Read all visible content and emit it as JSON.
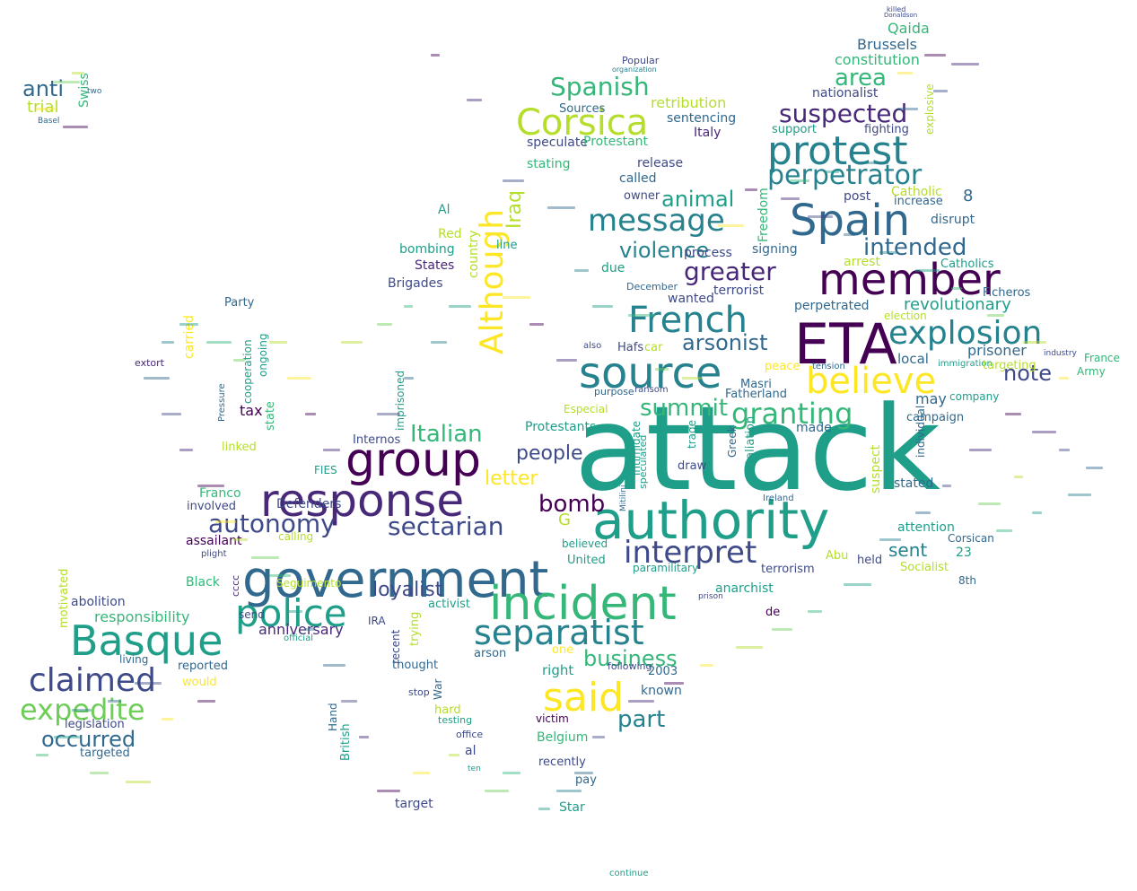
{
  "palette": [
    "#440154",
    "#482878",
    "#3e4a89",
    "#31688e",
    "#26828e",
    "#1f9e89",
    "#35b779",
    "#6ece58",
    "#b5de2b",
    "#fde725"
  ],
  "words": [
    {
      "text": "attack",
      "color": "#1f9e89"
    },
    {
      "text": "authority",
      "color": "#1f9e89"
    },
    {
      "text": "government",
      "color": "#31688e"
    },
    {
      "text": "incident",
      "color": "#35b779"
    },
    {
      "text": "group",
      "color": "#440154"
    },
    {
      "text": "response",
      "color": "#482878"
    },
    {
      "text": "ETA",
      "color": "#440154"
    },
    {
      "text": "Spain",
      "color": "#31688e"
    },
    {
      "text": "member",
      "color": "#440154"
    },
    {
      "text": "protest",
      "color": "#26828e"
    },
    {
      "text": "source",
      "color": "#26828e"
    },
    {
      "text": "police",
      "color": "#1f9e89"
    },
    {
      "text": "Basque",
      "color": "#1f9e89"
    },
    {
      "text": "said",
      "color": "#fde725"
    },
    {
      "text": "believe",
      "color": "#fde725"
    },
    {
      "text": "separatist",
      "color": "#26828e"
    },
    {
      "text": "French",
      "color": "#26828e"
    },
    {
      "text": "message",
      "color": "#26828e"
    },
    {
      "text": "explosion",
      "color": "#26828e"
    },
    {
      "text": "Corsica",
      "color": "#b5de2b"
    },
    {
      "text": "claimed",
      "color": "#3e4a89"
    },
    {
      "text": "expedite",
      "color": "#6ece58"
    },
    {
      "text": "interpret",
      "color": "#3e4a89"
    },
    {
      "text": "Although",
      "color": "#fde725"
    },
    {
      "text": "granting",
      "color": "#35b779"
    },
    {
      "text": "perpetrator",
      "color": "#26828e"
    },
    {
      "text": "autonomy",
      "color": "#3e4a89"
    },
    {
      "text": "suspected",
      "color": "#482878"
    },
    {
      "text": "greater",
      "color": "#482878"
    },
    {
      "text": "Spanish",
      "color": "#35b779"
    },
    {
      "text": "intended",
      "color": "#31688e"
    },
    {
      "text": "summit",
      "color": "#35b779"
    },
    {
      "text": "Italian",
      "color": "#35b779"
    },
    {
      "text": "bomb",
      "color": "#440154"
    },
    {
      "text": "sectarian",
      "color": "#3e4a89"
    },
    {
      "text": "violence",
      "color": "#26828e"
    },
    {
      "text": "arsonist",
      "color": "#31688e"
    },
    {
      "text": "part",
      "color": "#26828e"
    },
    {
      "text": "business",
      "color": "#35b779"
    },
    {
      "text": "occurred",
      "color": "#31688e"
    },
    {
      "text": "loyalist",
      "color": "#3e4a89"
    },
    {
      "text": "note",
      "color": "#3e4a89"
    },
    {
      "text": "animal",
      "color": "#1f9e89"
    },
    {
      "text": "area",
      "color": "#35b779"
    },
    {
      "text": "letter",
      "color": "#fde725"
    },
    {
      "text": "people",
      "color": "#3e4a89"
    },
    {
      "text": "anti",
      "color": "#31688e"
    },
    {
      "text": "Iraq",
      "color": "#b5de2b"
    },
    {
      "text": "revolutionary",
      "color": "#1f9e89"
    },
    {
      "text": "prisoner",
      "color": "#31688e"
    },
    {
      "text": "anniversary",
      "color": "#482878"
    },
    {
      "text": "sent",
      "color": "#26828e"
    },
    {
      "text": "constitution",
      "color": "#35b779"
    },
    {
      "text": "Brussels",
      "color": "#31688e"
    },
    {
      "text": "nationalist",
      "color": "#3e4a89"
    },
    {
      "text": "retribution",
      "color": "#b5de2b"
    },
    {
      "text": "sentencing",
      "color": "#31688e"
    },
    {
      "text": "responsibility",
      "color": "#35b779"
    },
    {
      "text": "Qaida",
      "color": "#35b779"
    },
    {
      "text": "trial",
      "color": "#b5de2b"
    },
    {
      "text": "Swiss",
      "color": "#35b779"
    },
    {
      "text": "two",
      "color": "#31688e"
    },
    {
      "text": "Basel",
      "color": "#31688e"
    },
    {
      "text": "Popular",
      "color": "#3e4a89"
    },
    {
      "text": "organization",
      "color": "#26828e"
    },
    {
      "text": "Sources",
      "color": "#31688e"
    },
    {
      "text": "speculate",
      "color": "#3e4a89"
    },
    {
      "text": "Protestant",
      "color": "#35b779"
    },
    {
      "text": "stating",
      "color": "#35b779"
    },
    {
      "text": "release",
      "color": "#3e4a89"
    },
    {
      "text": "Italy",
      "color": "#482878"
    },
    {
      "text": "support",
      "color": "#1f9e89"
    },
    {
      "text": "fighting",
      "color": "#3e4a89"
    },
    {
      "text": "explosive",
      "color": "#b5de2b"
    },
    {
      "text": "called",
      "color": "#31688e"
    },
    {
      "text": "owner",
      "color": "#3e4a89"
    },
    {
      "text": "Catholic",
      "color": "#b5de2b"
    },
    {
      "text": "increase",
      "color": "#31688e"
    },
    {
      "text": "8",
      "color": "#31688e"
    },
    {
      "text": "post",
      "color": "#3e4a89"
    },
    {
      "text": "disrupt",
      "color": "#31688e"
    },
    {
      "text": "Freedom",
      "color": "#35b779"
    },
    {
      "text": "Al",
      "color": "#1f9e89"
    },
    {
      "text": "Red",
      "color": "#b5de2b"
    },
    {
      "text": "bombing",
      "color": "#1f9e89"
    },
    {
      "text": "line",
      "color": "#1f9e89"
    },
    {
      "text": "country",
      "color": "#b5de2b"
    },
    {
      "text": "States",
      "color": "#482878"
    },
    {
      "text": "Brigades",
      "color": "#3e4a89"
    },
    {
      "text": "due",
      "color": "#1f9e89"
    },
    {
      "text": "process",
      "color": "#3e4a89"
    },
    {
      "text": "signing",
      "color": "#31688e"
    },
    {
      "text": "arrest",
      "color": "#b5de2b"
    },
    {
      "text": "Catholics",
      "color": "#1f9e89"
    },
    {
      "text": "December",
      "color": "#31688e"
    },
    {
      "text": "terrorist",
      "color": "#3e4a89"
    },
    {
      "text": "wanted",
      "color": "#3e4a89"
    },
    {
      "text": "Ficheros",
      "color": "#31688e"
    },
    {
      "text": "perpetrated",
      "color": "#31688e"
    },
    {
      "text": "election",
      "color": "#b5de2b"
    },
    {
      "text": "Party",
      "color": "#31688e"
    },
    {
      "text": "cooperation",
      "color": "#1f9e89"
    },
    {
      "text": "ongoing",
      "color": "#1f9e89"
    },
    {
      "text": "carried",
      "color": "#fde725"
    },
    {
      "text": "tax",
      "color": "#440154"
    },
    {
      "text": "state",
      "color": "#35b779"
    },
    {
      "text": "Pressure",
      "color": "#31688e"
    },
    {
      "text": "linked",
      "color": "#b5de2b"
    },
    {
      "text": "Hafs",
      "color": "#3e4a89"
    },
    {
      "text": "car",
      "color": "#b5de2b"
    },
    {
      "text": "also",
      "color": "#3e4a89"
    },
    {
      "text": "peace",
      "color": "#fde725"
    },
    {
      "text": "Masri",
      "color": "#31688e"
    },
    {
      "text": "Fatherland",
      "color": "#31688e"
    },
    {
      "text": "tension",
      "color": "#31688e"
    },
    {
      "text": "local",
      "color": "#31688e"
    },
    {
      "text": "immigration",
      "color": "#1f9e89"
    },
    {
      "text": "targeting",
      "color": "#b5de2b"
    },
    {
      "text": "may",
      "color": "#31688e"
    },
    {
      "text": "company",
      "color": "#1f9e89"
    },
    {
      "text": "France",
      "color": "#35b779"
    },
    {
      "text": "Army",
      "color": "#35b779"
    },
    {
      "text": "industry",
      "color": "#3e4a89"
    },
    {
      "text": "campaign",
      "color": "#31688e"
    },
    {
      "text": "made",
      "color": "#31688e"
    },
    {
      "text": "individual",
      "color": "#31688e"
    },
    {
      "text": "stated",
      "color": "#31688e"
    },
    {
      "text": "suspect",
      "color": "#b5de2b"
    },
    {
      "text": "attention",
      "color": "#1f9e89"
    },
    {
      "text": "Corsican",
      "color": "#31688e"
    },
    {
      "text": "23",
      "color": "#1f9e89"
    },
    {
      "text": "Socialist",
      "color": "#b5de2b"
    },
    {
      "text": "held",
      "color": "#3e4a89"
    },
    {
      "text": "Abu",
      "color": "#b5de2b"
    },
    {
      "text": "8th",
      "color": "#31688e"
    },
    {
      "text": "terrorism",
      "color": "#3e4a89"
    },
    {
      "text": "paramilitary",
      "color": "#1f9e89"
    },
    {
      "text": "anarchist",
      "color": "#1f9e89"
    },
    {
      "text": "de",
      "color": "#440154"
    },
    {
      "text": "prison",
      "color": "#3e4a89"
    },
    {
      "text": "Ireland",
      "color": "#31688e"
    },
    {
      "text": "retaliation",
      "color": "#1f9e89"
    },
    {
      "text": "Greek",
      "color": "#31688e"
    },
    {
      "text": "trade",
      "color": "#1f9e89"
    },
    {
      "text": "draw",
      "color": "#3e4a89"
    },
    {
      "text": "intimidate",
      "color": "#1f9e89"
    },
    {
      "text": "speculated",
      "color": "#1f9e89"
    },
    {
      "text": "Mitilini",
      "color": "#31688e"
    },
    {
      "text": "Especial",
      "color": "#b5de2b"
    },
    {
      "text": "ransom",
      "color": "#3e4a89"
    },
    {
      "text": "purpose",
      "color": "#31688e"
    },
    {
      "text": "Protestants",
      "color": "#1f9e89"
    },
    {
      "text": "Internos",
      "color": "#3e4a89"
    },
    {
      "text": "imprisoned",
      "color": "#1f9e89"
    },
    {
      "text": "FIES",
      "color": "#1f9e89"
    },
    {
      "text": "Defenders",
      "color": "#3e4a89"
    },
    {
      "text": "Franco",
      "color": "#35b779"
    },
    {
      "text": "involved",
      "color": "#3e4a89"
    },
    {
      "text": "assailant",
      "color": "#440154"
    },
    {
      "text": "calling",
      "color": "#b5de2b"
    },
    {
      "text": "plight",
      "color": "#3e4a89"
    },
    {
      "text": "Black",
      "color": "#35b779"
    },
    {
      "text": "cccc",
      "color": "#482878"
    },
    {
      "text": "Seguimento",
      "color": "#b5de2b"
    },
    {
      "text": "send",
      "color": "#3e4a89"
    },
    {
      "text": "abolition",
      "color": "#3e4a89"
    },
    {
      "text": "motivated",
      "color": "#b5de2b"
    },
    {
      "text": "reported",
      "color": "#31688e"
    },
    {
      "text": "would",
      "color": "#fde725"
    },
    {
      "text": "living",
      "color": "#31688e"
    },
    {
      "text": "legislation",
      "color": "#3e4a89"
    },
    {
      "text": "targeted",
      "color": "#31688e"
    },
    {
      "text": "extort",
      "color": "#482878"
    },
    {
      "text": "recent",
      "color": "#3e4a89"
    },
    {
      "text": "thought",
      "color": "#31688e"
    },
    {
      "text": "trying",
      "color": "#b5de2b"
    },
    {
      "text": "activist",
      "color": "#1f9e89"
    },
    {
      "text": "IRA",
      "color": "#3e4a89"
    },
    {
      "text": "arson",
      "color": "#31688e"
    },
    {
      "text": "one",
      "color": "#fde725"
    },
    {
      "text": "right",
      "color": "#1f9e89"
    },
    {
      "text": "War",
      "color": "#31688e"
    },
    {
      "text": "stop",
      "color": "#3e4a89"
    },
    {
      "text": "hard",
      "color": "#b5de2b"
    },
    {
      "text": "testing",
      "color": "#1f9e89"
    },
    {
      "text": "office",
      "color": "#3e4a89"
    },
    {
      "text": "al",
      "color": "#3e4a89"
    },
    {
      "text": "ten",
      "color": "#1f9e89"
    },
    {
      "text": "Hand",
      "color": "#31688e"
    },
    {
      "text": "British",
      "color": "#1f9e89"
    },
    {
      "text": "target",
      "color": "#3e4a89"
    },
    {
      "text": "Star",
      "color": "#1f9e89"
    },
    {
      "text": "pay",
      "color": "#31688e"
    },
    {
      "text": "recently",
      "color": "#3e4a89"
    },
    {
      "text": "Belgium",
      "color": "#35b779"
    },
    {
      "text": "victim",
      "color": "#440154"
    },
    {
      "text": "known",
      "color": "#31688e"
    },
    {
      "text": "2003",
      "color": "#31688e"
    },
    {
      "text": "following",
      "color": "#3e4a89"
    },
    {
      "text": "United",
      "color": "#1f9e89"
    },
    {
      "text": "believed",
      "color": "#1f9e89"
    },
    {
      "text": "G",
      "color": "#b5de2b"
    },
    {
      "text": "official",
      "color": "#1f9e89"
    },
    {
      "text": "continue",
      "color": "#1f9e89"
    },
    {
      "text": "killed",
      "color": "#3e4a89"
    },
    {
      "text": "Donaldson",
      "color": "#3e4a89"
    }
  ]
}
